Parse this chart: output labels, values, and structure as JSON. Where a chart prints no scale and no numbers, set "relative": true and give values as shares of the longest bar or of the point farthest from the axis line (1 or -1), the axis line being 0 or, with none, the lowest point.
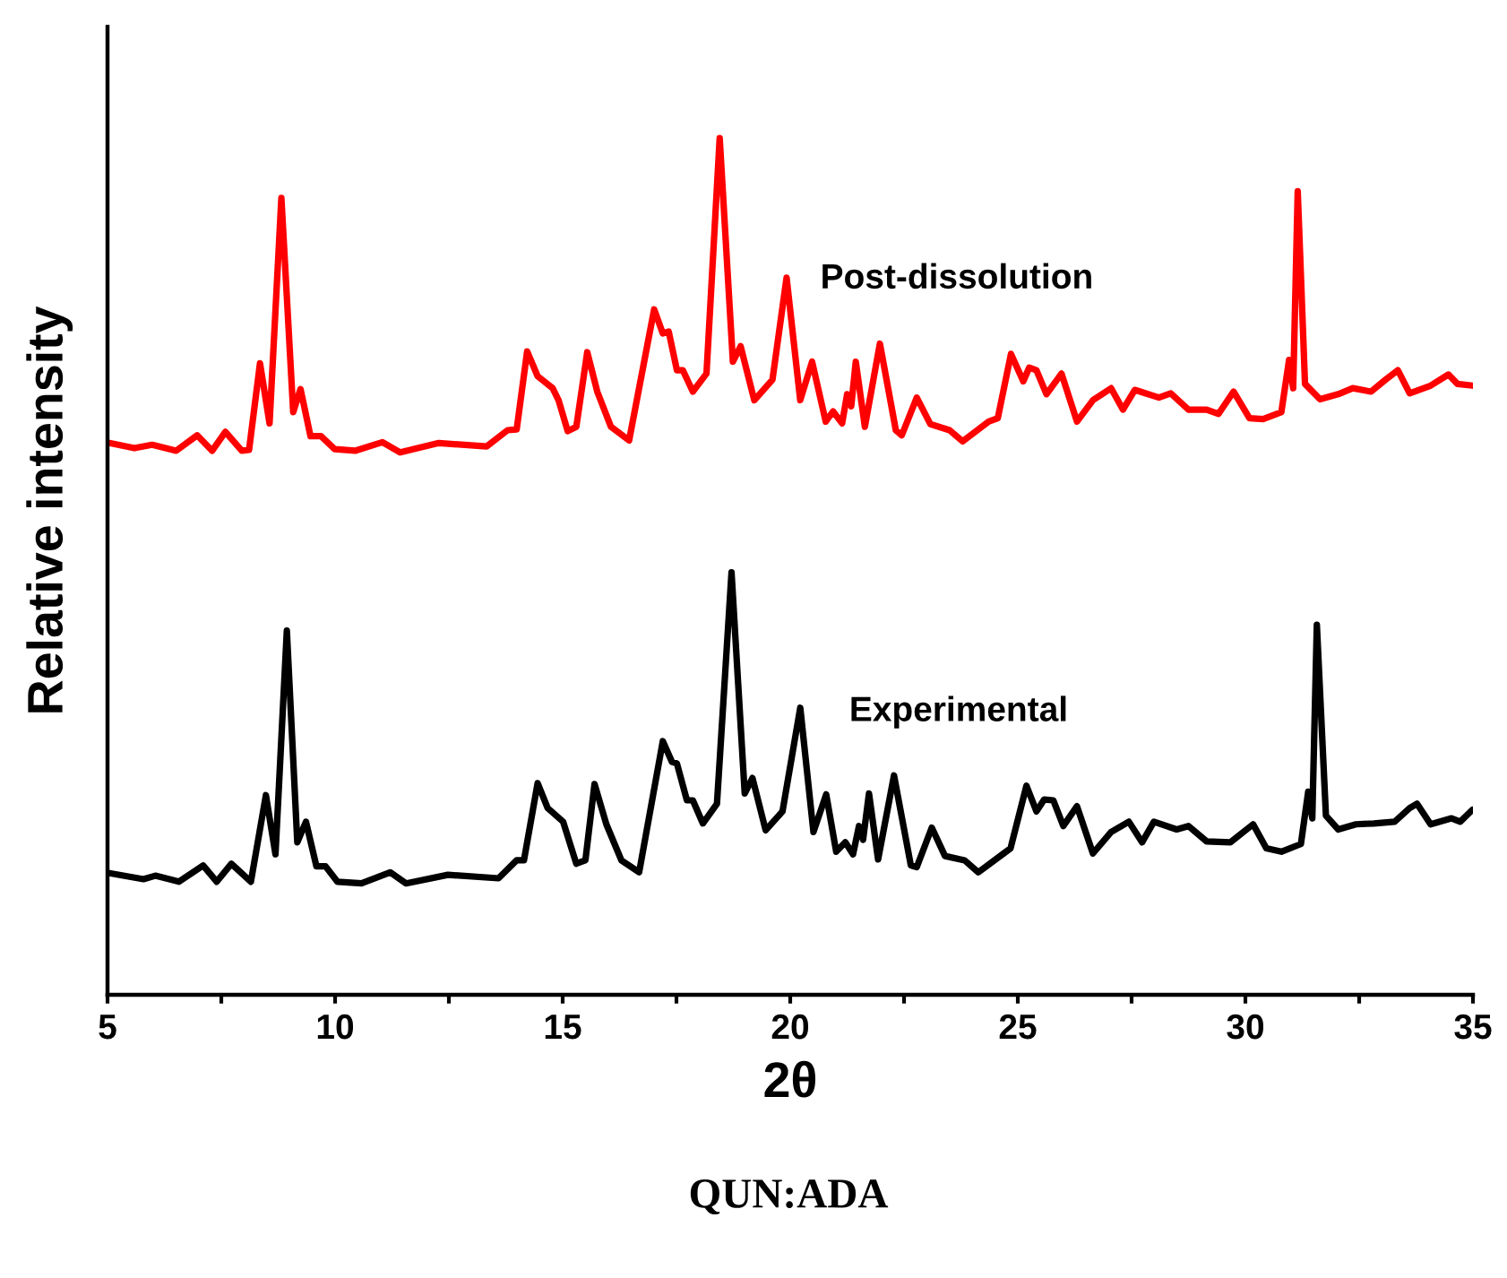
{
  "chart_data": {
    "type": "line",
    "relative": true,
    "xlabel": "2θ",
    "ylabel": "Relative intensity",
    "annotations": [
      "QUN:ADA"
    ],
    "xlim": [
      5,
      35
    ],
    "xticks": [
      5,
      {
        "value": 7.5,
        "label": null
      },
      10,
      {
        "value": 12.5,
        "label": null
      },
      15,
      {
        "value": 17.5,
        "label": null
      },
      20,
      {
        "value": 22.5,
        "label": null
      },
      25,
      {
        "value": 27.5,
        "label": null
      },
      30,
      {
        "value": 32.5,
        "label": null
      },
      35
    ],
    "grid": false,
    "legend": false,
    "marker": "none",
    "line_style": "solid",
    "series": [
      {
        "name": "Post-dissolution",
        "color": "#ff0000",
        "x": [
          5.04,
          5.59,
          5.98,
          6.51,
          6.97,
          7.3,
          7.59,
          7.95,
          8.11,
          8.35,
          8.56,
          8.82,
          9.08,
          9.24,
          9.46,
          9.69,
          9.99,
          10.44,
          11.04,
          11.43,
          12.28,
          13.33,
          13.79,
          13.99,
          14.22,
          14.45,
          14.78,
          14.91,
          15.11,
          15.3,
          15.54,
          15.76,
          16.06,
          16.46,
          17.01,
          17.2,
          17.33,
          17.51,
          17.64,
          17.86,
          18.16,
          18.45,
          18.74,
          18.91,
          19.21,
          19.61,
          19.92,
          20.22,
          20.48,
          20.78,
          20.94,
          21.14,
          21.25,
          21.34,
          21.44,
          21.64,
          21.97,
          22.32,
          22.45,
          22.78,
          23.08,
          23.5,
          23.79,
          24.36,
          24.56,
          24.85,
          25.12,
          25.25,
          25.41,
          25.63,
          25.96,
          26.3,
          26.65,
          27.05,
          27.31,
          27.57,
          28.1,
          28.36,
          28.75,
          29.15,
          29.41,
          29.74,
          30.09,
          30.39,
          30.79,
          30.96,
          31.05,
          31.15,
          31.31,
          31.64,
          32.04,
          32.36,
          32.76,
          33.08,
          33.35,
          33.61,
          34.07,
          34.46,
          34.66,
          34.99
        ],
        "values": [
          0.644,
          0.638,
          0.642,
          0.635,
          0.653,
          0.635,
          0.657,
          0.635,
          0.636,
          0.737,
          0.667,
          0.93,
          0.68,
          0.707,
          0.652,
          0.652,
          0.637,
          0.635,
          0.645,
          0.633,
          0.644,
          0.64,
          0.659,
          0.66,
          0.751,
          0.722,
          0.708,
          0.694,
          0.658,
          0.663,
          0.75,
          0.704,
          0.663,
          0.647,
          0.8,
          0.772,
          0.774,
          0.729,
          0.729,
          0.704,
          0.725,
          1.0,
          0.739,
          0.757,
          0.694,
          0.718,
          0.837,
          0.694,
          0.739,
          0.669,
          0.681,
          0.667,
          0.701,
          0.687,
          0.739,
          0.663,
          0.76,
          0.659,
          0.653,
          0.697,
          0.666,
          0.659,
          0.646,
          0.669,
          0.673,
          0.748,
          0.716,
          0.732,
          0.729,
          0.701,
          0.725,
          0.669,
          0.694,
          0.708,
          0.683,
          0.706,
          0.697,
          0.702,
          0.683,
          0.683,
          0.678,
          0.704,
          0.673,
          0.672,
          0.68,
          0.741,
          0.708,
          0.938,
          0.713,
          0.695,
          0.701,
          0.708,
          0.704,
          0.718,
          0.729,
          0.702,
          0.711,
          0.724,
          0.713,
          0.711
        ]
      },
      {
        "name": "Experimental",
        "color": "#000000",
        "x": [
          5.04,
          5.79,
          6.05,
          6.57,
          7.1,
          7.4,
          7.72,
          8.15,
          8.48,
          8.69,
          8.94,
          9.17,
          9.36,
          9.59,
          9.79,
          10.05,
          10.58,
          11.21,
          11.56,
          12.48,
          13.59,
          13.99,
          14.15,
          14.45,
          14.67,
          15.01,
          15.3,
          15.5,
          15.7,
          15.96,
          16.29,
          16.68,
          17.2,
          17.4,
          17.51,
          17.73,
          17.86,
          18.08,
          18.39,
          18.71,
          19.0,
          19.17,
          19.46,
          19.83,
          20.22,
          20.51,
          20.79,
          21.01,
          21.21,
          21.38,
          21.51,
          21.6,
          21.73,
          21.93,
          22.28,
          22.65,
          22.78,
          23.11,
          23.4,
          23.83,
          24.13,
          24.69,
          24.84,
          25.19,
          25.41,
          25.58,
          25.78,
          26.0,
          26.3,
          26.65,
          27.05,
          27.44,
          27.73,
          27.99,
          28.49,
          28.75,
          29.15,
          29.67,
          30.17,
          30.46,
          30.79,
          31.22,
          31.38,
          31.47,
          31.57,
          31.77,
          32.04,
          32.43,
          32.82,
          33.28,
          33.61,
          33.77,
          34.07,
          34.53,
          34.72,
          34.99
        ],
        "values": [
          0.142,
          0.135,
          0.139,
          0.132,
          0.151,
          0.132,
          0.153,
          0.132,
          0.233,
          0.164,
          0.425,
          0.178,
          0.202,
          0.15,
          0.15,
          0.132,
          0.13,
          0.143,
          0.13,
          0.14,
          0.136,
          0.157,
          0.157,
          0.247,
          0.218,
          0.202,
          0.153,
          0.157,
          0.246,
          0.199,
          0.157,
          0.143,
          0.296,
          0.272,
          0.27,
          0.227,
          0.227,
          0.2,
          0.223,
          0.493,
          0.235,
          0.253,
          0.192,
          0.214,
          0.335,
          0.19,
          0.234,
          0.167,
          0.178,
          0.164,
          0.197,
          0.181,
          0.235,
          0.158,
          0.256,
          0.151,
          0.149,
          0.195,
          0.162,
          0.157,
          0.143,
          0.165,
          0.171,
          0.244,
          0.214,
          0.228,
          0.227,
          0.197,
          0.22,
          0.165,
          0.19,
          0.202,
          0.178,
          0.202,
          0.193,
          0.197,
          0.179,
          0.178,
          0.199,
          0.171,
          0.167,
          0.176,
          0.237,
          0.206,
          0.432,
          0.209,
          0.193,
          0.199,
          0.2,
          0.202,
          0.218,
          0.223,
          0.199,
          0.206,
          0.202,
          0.216
        ]
      }
    ]
  }
}
